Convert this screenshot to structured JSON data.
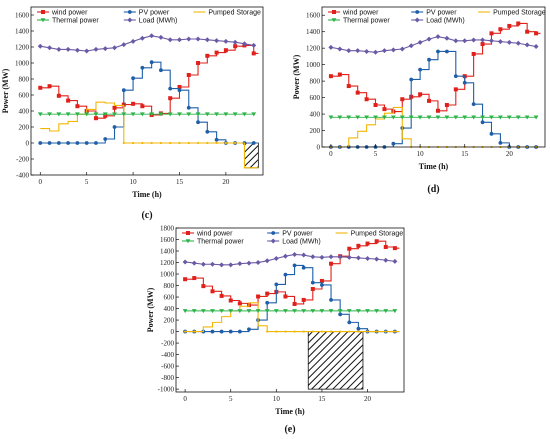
{
  "colors": {
    "wind": "#e0201b",
    "pv": "#1f5fa8",
    "pumped": "#f2b705",
    "thermal": "#2db34a",
    "load": "#6a5aa6"
  },
  "chart_data": [
    {
      "type": "line",
      "panel": "(c)",
      "xlabel": "Time (h)",
      "ylabel": "Power (MW)",
      "xlim": [
        -1,
        24
      ],
      "ylim": [
        -400,
        1700
      ],
      "yticks": [
        -400,
        -200,
        0,
        200,
        400,
        600,
        800,
        1000,
        1200,
        1400,
        1600
      ],
      "xticks": [
        0,
        5,
        10,
        15,
        20
      ],
      "legend_placement": "top",
      "x": [
        0,
        1,
        2,
        3,
        4,
        5,
        6,
        7,
        8,
        9,
        10,
        11,
        12,
        13,
        14,
        15,
        16,
        17,
        18,
        19,
        20,
        21,
        22,
        23
      ],
      "series": [
        {
          "name": "wind power",
          "key": "wind",
          "step": true,
          "marker": "square",
          "values": [
            690,
            710,
            590,
            530,
            460,
            400,
            310,
            340,
            440,
            480,
            490,
            460,
            350,
            370,
            560,
            700,
            850,
            1000,
            1090,
            1130,
            1160,
            1210,
            1220,
            1120
          ]
        },
        {
          "name": "PV power",
          "key": "pv",
          "step": true,
          "marker": "circle",
          "values": [
            0,
            0,
            0,
            0,
            0,
            0,
            0,
            50,
            200,
            660,
            810,
            940,
            1010,
            910,
            680,
            660,
            440,
            260,
            140,
            40,
            0,
            0,
            0,
            0
          ]
        },
        {
          "name": "Pumped Storage",
          "key": "pumped",
          "step": true,
          "marker": "none",
          "values": [
            180,
            150,
            240,
            270,
            360,
            420,
            510,
            500,
            470,
            0,
            0,
            0,
            0,
            0,
            0,
            0,
            0,
            0,
            0,
            0,
            0,
            0,
            -310,
            -310
          ]
        },
        {
          "name": "Thermal power",
          "key": "thermal",
          "step": false,
          "marker": "triangle",
          "values": [
            360,
            360,
            360,
            360,
            360,
            360,
            360,
            360,
            360,
            360,
            360,
            360,
            360,
            360,
            360,
            360,
            360,
            360,
            360,
            360,
            360,
            360,
            360,
            360
          ]
        },
        {
          "name": "Load (MWh)",
          "key": "load",
          "step": false,
          "marker": "diamond",
          "values": [
            1210,
            1190,
            1170,
            1170,
            1160,
            1150,
            1170,
            1180,
            1190,
            1230,
            1270,
            1310,
            1340,
            1320,
            1290,
            1290,
            1300,
            1300,
            1290,
            1280,
            1270,
            1260,
            1240,
            1220
          ]
        }
      ],
      "hatched_region": {
        "x": [
          22,
          23.5
        ],
        "y": [
          -310,
          0
        ]
      }
    },
    {
      "type": "line",
      "panel": "(d)",
      "xlabel": "Time (h)",
      "ylabel": "Power (MW)",
      "xlim": [
        -1,
        24
      ],
      "ylim": [
        0,
        1700
      ],
      "yticks": [
        0,
        200,
        400,
        600,
        800,
        1000,
        1200,
        1400,
        1600
      ],
      "xticks": [
        0,
        5,
        10,
        15,
        20
      ],
      "legend_placement": "top",
      "x": [
        0,
        1,
        2,
        3,
        4,
        5,
        6,
        7,
        8,
        9,
        10,
        11,
        12,
        13,
        14,
        15,
        16,
        17,
        18,
        19,
        20,
        21,
        22,
        23
      ],
      "series": [
        {
          "name": "wind power",
          "key": "wind",
          "step": true,
          "marker": "square",
          "values": [
            860,
            880,
            740,
            660,
            580,
            510,
            460,
            430,
            580,
            610,
            640,
            560,
            440,
            510,
            700,
            860,
            1130,
            1250,
            1380,
            1430,
            1470,
            1500,
            1400,
            1380
          ]
        },
        {
          "name": "PV power",
          "key": "pv",
          "step": true,
          "marker": "circle",
          "values": [
            0,
            0,
            0,
            0,
            0,
            0,
            0,
            40,
            230,
            820,
            940,
            1060,
            1160,
            1160,
            860,
            780,
            520,
            300,
            160,
            50,
            0,
            0,
            0,
            0
          ]
        },
        {
          "name": "Pumped Storage",
          "key": "pumped",
          "step": true,
          "marker": "none",
          "values": [
            0,
            0,
            110,
            190,
            270,
            340,
            410,
            480,
            100,
            0,
            0,
            0,
            0,
            0,
            0,
            0,
            0,
            0,
            0,
            0,
            0,
            0,
            0,
            0
          ]
        },
        {
          "name": "Thermal power",
          "key": "thermal",
          "step": false,
          "marker": "triangle",
          "values": [
            360,
            360,
            360,
            360,
            360,
            360,
            360,
            360,
            360,
            360,
            360,
            360,
            360,
            360,
            360,
            360,
            360,
            360,
            360,
            360,
            360,
            360,
            360,
            360
          ]
        },
        {
          "name": "Load (MWh)",
          "key": "load",
          "step": false,
          "marker": "diamond",
          "values": [
            1210,
            1190,
            1170,
            1170,
            1160,
            1150,
            1170,
            1180,
            1190,
            1230,
            1270,
            1310,
            1340,
            1320,
            1290,
            1290,
            1300,
            1300,
            1290,
            1280,
            1270,
            1260,
            1240,
            1220
          ]
        }
      ]
    },
    {
      "type": "line",
      "panel": "(e)",
      "xlabel": "Time (h)",
      "ylabel": "Power (MW)",
      "xlim": [
        -1,
        24
      ],
      "ylim": [
        -1050,
        1800
      ],
      "yticks": [
        -1000,
        -800,
        -600,
        -400,
        -200,
        0,
        200,
        400,
        600,
        800,
        1000,
        1200,
        1400,
        1600,
        1800
      ],
      "xticks": [
        0,
        5,
        10,
        15,
        20
      ],
      "legend_placement": "top",
      "x": [
        0,
        1,
        2,
        3,
        4,
        5,
        6,
        7,
        8,
        9,
        10,
        11,
        12,
        13,
        14,
        15,
        16,
        17,
        18,
        19,
        20,
        21,
        22,
        23
      ],
      "series": [
        {
          "name": "wind power",
          "key": "wind",
          "step": true,
          "marker": "square",
          "values": [
            910,
            930,
            790,
            700,
            620,
            540,
            490,
            460,
            610,
            660,
            690,
            610,
            480,
            550,
            740,
            880,
            1180,
            1310,
            1440,
            1490,
            1530,
            1570,
            1470,
            1450
          ]
        },
        {
          "name": "PV power",
          "key": "pv",
          "step": true,
          "marker": "circle",
          "values": [
            0,
            0,
            0,
            0,
            0,
            0,
            0,
            40,
            200,
            500,
            820,
            990,
            1150,
            1110,
            850,
            810,
            550,
            300,
            160,
            50,
            0,
            0,
            0,
            0
          ]
        },
        {
          "name": "Pumped Storage",
          "key": "pumped",
          "step": true,
          "marker": "none",
          "values": [
            0,
            0,
            80,
            160,
            260,
            360,
            440,
            500,
            100,
            0,
            0,
            0,
            0,
            0,
            0,
            0,
            0,
            0,
            0,
            0,
            0,
            0,
            0,
            0
          ]
        },
        {
          "name": "Thermal power",
          "key": "thermal",
          "step": false,
          "marker": "triangle",
          "values": [
            360,
            360,
            360,
            360,
            360,
            360,
            360,
            360,
            360,
            360,
            360,
            360,
            360,
            360,
            360,
            360,
            360,
            360,
            360,
            360,
            360,
            360,
            360,
            360
          ]
        },
        {
          "name": "Load (MWh)",
          "key": "load",
          "step": false,
          "marker": "diamond",
          "values": [
            1210,
            1190,
            1170,
            1170,
            1160,
            1160,
            1180,
            1190,
            1200,
            1230,
            1270,
            1310,
            1340,
            1330,
            1300,
            1290,
            1300,
            1300,
            1290,
            1280,
            1270,
            1260,
            1240,
            1220
          ]
        }
      ],
      "hatched_region": {
        "x": [
          13.5,
          19.5
        ],
        "y": [
          -1000,
          0
        ]
      }
    }
  ]
}
